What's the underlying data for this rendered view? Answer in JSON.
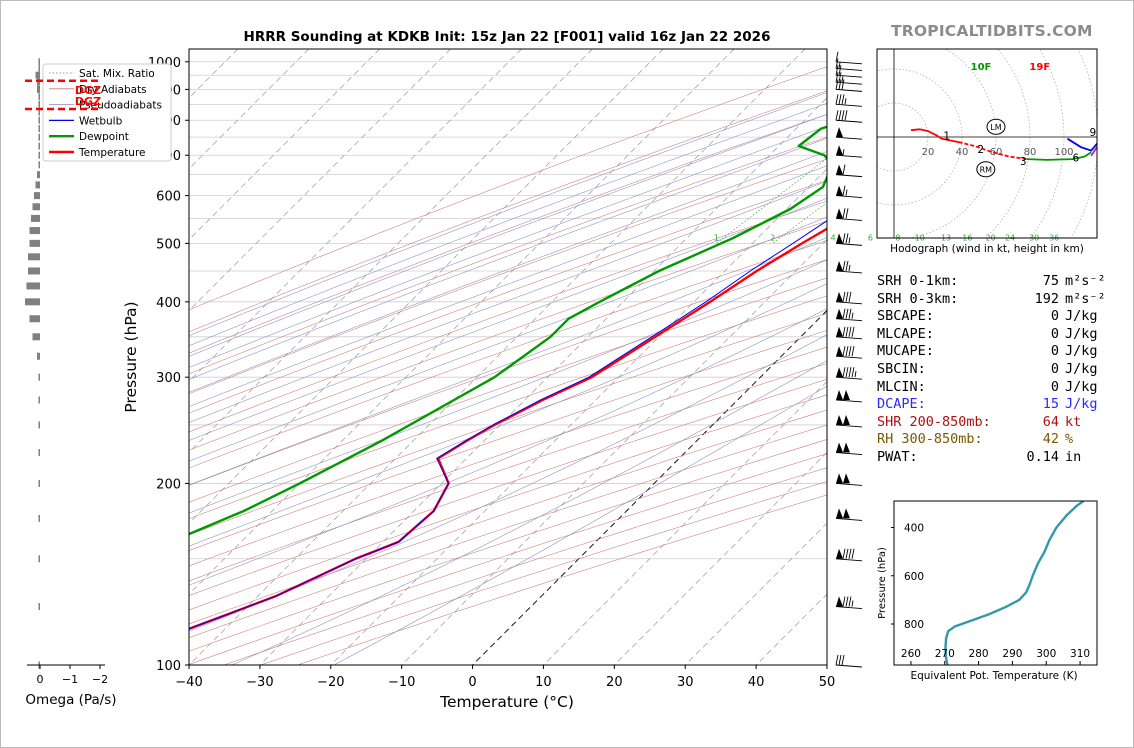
{
  "title": "HRRR Sounding at KDKB Init: 15z Jan 22 [F001] valid 16z Jan 22 2026",
  "brand": "TROPICALTIDBITS.COM",
  "colors": {
    "temperature": "#ff0000",
    "dewpoint": "#009900",
    "wetbulb": "#0000ff",
    "dry_adiabat": "#c87878",
    "moist_adiabat": "#8888cc",
    "mixing_ratio": "#33aa33",
    "dcape": "#2a2aff",
    "shr": "#b01010",
    "rh": "#7a5a00",
    "theta_e": "#3399aa",
    "dgz": "#ff0000",
    "brand": "#8c8c8c"
  },
  "chart_data": [
    {
      "type": "line",
      "id": "skewt",
      "title": "HRRR Sounding at KDKB Init: 15z Jan 22 [F001] valid 16z Jan 22 2026",
      "xlabel": "Temperature (°C)",
      "ylabel": "Pressure (hPa)",
      "xlim": [
        -40,
        50
      ],
      "ylim": [
        1050,
        100
      ],
      "y_scale": "log",
      "x_ticks": [
        "−40",
        "−30",
        "−20",
        "−10",
        "0",
        "10",
        "20",
        "30",
        "40",
        "50"
      ],
      "y_ticks": [
        "100",
        "200",
        "300",
        "400",
        "500",
        "600",
        "700",
        "800",
        "900",
        "1000"
      ],
      "legend": {
        "placement": "top-left",
        "entries": [
          "Sat. Mix. Ratio",
          "Dry Adiabats",
          "Pseudoadiabats",
          "Wetbulb",
          "Dewpoint",
          "Temperature"
        ]
      },
      "mixing_ratio_labels": [
        "1",
        "2",
        "4",
        "6",
        "8",
        "10",
        "13",
        "16",
        "20",
        "24",
        "30",
        "36"
      ],
      "series": [
        {
          "name": "Temperature",
          "x": [
            -5.5,
            -7,
            -8.5,
            -9.5,
            -10.3,
            -11.5,
            -12.2,
            -12.8,
            -10.3,
            -8.3,
            -6.3,
            -6.1,
            -7.5,
            -10.5,
            -13,
            -15.5,
            -17.7,
            -20.5,
            -23.8,
            -27.5,
            -30.8,
            -32.5,
            -34,
            -29,
            -27.2,
            -27.8,
            -31.5,
            -37.5,
            -45,
            -51.5
          ],
          "y": [
            980,
            960,
            940,
            920,
            900,
            875,
            850,
            825,
            775,
            725,
            675,
            650,
            600,
            550,
            500,
            450,
            400,
            350,
            300,
            275,
            250,
            235,
            220,
            200,
            180,
            160,
            150,
            130,
            115,
            100
          ]
        },
        {
          "name": "Wetbulb",
          "x": [
            -8,
            -9.5,
            -10.7,
            -11.3,
            -11.8,
            -12.6,
            -13.1,
            -13.6,
            -12.2,
            -11.2,
            -10.2,
            -9.3,
            -10.2,
            -12.5,
            -14.3,
            -16.4,
            -18.3,
            -21,
            -24.2,
            -27.8,
            -31,
            -32.6,
            -34.2,
            -29,
            -27.2,
            -27.8,
            -31.5,
            -37.5,
            -45,
            -51.5
          ],
          "y": [
            980,
            960,
            940,
            920,
            900,
            875,
            850,
            825,
            775,
            725,
            675,
            650,
            600,
            550,
            500,
            450,
            400,
            350,
            300,
            275,
            250,
            235,
            220,
            200,
            180,
            160,
            150,
            130,
            115,
            100
          ]
        },
        {
          "name": "Dewpoint",
          "x": [
            -14.5,
            -14.6,
            -14.8,
            -15,
            -15.8,
            -16.8,
            -18.5,
            -21.5,
            -26.5,
            -27.2,
            -22.3,
            -19.8,
            -18,
            -19.5,
            -23.5,
            -29.3,
            -33.3,
            -35.3,
            -35.3,
            -37.5,
            -40,
            -44.5,
            -50,
            -54,
            -60,
            -62.5,
            -67,
            -72,
            -78,
            -84
          ],
          "y": [
            985,
            960,
            940,
            920,
            900,
            875,
            850,
            825,
            775,
            725,
            700,
            675,
            620,
            570,
            510,
            450,
            400,
            375,
            350,
            300,
            275,
            235,
            200,
            180,
            160,
            150,
            130,
            115,
            105,
            100
          ]
        }
      ],
      "annotations": [
        "10F",
        "19F"
      ]
    },
    {
      "type": "bar",
      "id": "omega",
      "xlabel": "Omega (Pa/s)",
      "x_ticks": [
        "0",
        "−1",
        "−2"
      ],
      "annotations": [
        "DGZ",
        "DGZ"
      ],
      "dgz_pressure": [
        835,
        930
      ],
      "levels": [
        1000,
        975,
        950,
        925,
        900,
        875,
        850,
        825,
        800,
        775,
        750,
        725,
        700,
        675,
        650,
        625,
        600,
        575,
        550,
        525,
        500,
        475,
        450,
        425,
        400,
        375,
        350,
        325,
        300,
        275,
        250,
        225,
        200,
        175,
        150,
        125,
        100
      ],
      "values": [
        -0.05,
        -0.05,
        -0.15,
        -0.1,
        -0.1,
        -0.05,
        -0.05,
        -0.05,
        -0.05,
        -0.05,
        -0.05,
        -0.05,
        -0.05,
        -0.05,
        -0.1,
        -0.15,
        -0.2,
        -0.25,
        -0.3,
        -0.35,
        -0.35,
        -0.4,
        -0.4,
        -0.45,
        -0.5,
        -0.35,
        -0.25,
        -0.1,
        -0.05,
        -0.05,
        -0.05,
        -0.05,
        -0.05,
        -0.05,
        -0.05,
        -0.05,
        -0.05
      ]
    },
    {
      "type": "line",
      "id": "hodograph",
      "xlabel": "Hodograph (wind in kt, height in km)",
      "ring_labels": [
        "20",
        "40",
        "60",
        "80",
        "100"
      ],
      "height_labels": [
        "1",
        "2",
        "3",
        "6",
        "9"
      ],
      "markers": [
        "LM",
        "RM"
      ],
      "series": [
        {
          "name": "0-1 km",
          "color": "#ff0000",
          "u": [
            10,
            15,
            20,
            25,
            28,
            38
          ],
          "v": [
            4,
            4.5,
            3.5,
            1,
            -1,
            -3
          ]
        },
        {
          "name": "1-3 km",
          "color": "#ff0000",
          "u": [
            38,
            48,
            58,
            68,
            78
          ],
          "v": [
            -3,
            -5.5,
            -9,
            -11.5,
            -13
          ]
        },
        {
          "name": "3-6 km",
          "color": "#009900",
          "u": [
            78,
            90,
            105,
            112,
            116
          ],
          "v": [
            -13,
            -13.5,
            -13,
            -11.5,
            -9
          ]
        },
        {
          "name": "6-9 km",
          "color": "#0000ff",
          "u": [
            102,
            110,
            116,
            121
          ],
          "v": [
            -1,
            -6,
            -8,
            -2
          ]
        },
        {
          "name": "9+ km",
          "color": "#aa22cc",
          "u": [
            116,
            120,
            123
          ],
          "v": [
            -11,
            -5,
            0
          ]
        }
      ]
    },
    {
      "type": "line",
      "id": "theta_e",
      "xlabel": "Equivalent Pot. Temperature (K)",
      "ylabel": "Pressure (hPa)",
      "xlim": [
        255,
        315
      ],
      "ylim": [
        970,
        290
      ],
      "x_ticks": [
        "260",
        "270",
        "280",
        "290",
        "300",
        "310"
      ],
      "y_ticks": [
        "400",
        "600",
        "800"
      ],
      "series": [
        {
          "name": "Theta-E",
          "x": [
            270.8,
            270.5,
            270.3,
            270.2,
            270.4,
            271,
            273,
            277,
            283,
            288,
            292,
            294,
            295,
            296,
            297.5,
            299.5,
            301,
            303,
            306,
            309,
            311
          ],
          "y": [
            970,
            950,
            930,
            900,
            860,
            830,
            810,
            790,
            760,
            730,
            700,
            670,
            640,
            600,
            550,
            500,
            450,
            400,
            350,
            310,
            290
          ]
        }
      ]
    }
  ],
  "stats": [
    {
      "label": "SRH 0-1km:",
      "value": "75",
      "unit": "m²s⁻²",
      "color": "#000000"
    },
    {
      "label": "SRH 0-3km:",
      "value": "192",
      "unit": "m²s⁻²",
      "color": "#000000"
    },
    {
      "label": "SBCAPE:",
      "value": "0",
      "unit": "J/kg",
      "color": "#000000"
    },
    {
      "label": "MLCAPE:",
      "value": "0",
      "unit": "J/kg",
      "color": "#000000"
    },
    {
      "label": "MUCAPE:",
      "value": "0",
      "unit": "J/kg",
      "color": "#000000"
    },
    {
      "label": "SBCIN:",
      "value": "0",
      "unit": "J/kg",
      "color": "#000000"
    },
    {
      "label": "MLCIN:",
      "value": "0",
      "unit": "J/kg",
      "color": "#000000"
    },
    {
      "label": "DCAPE:",
      "value": "15",
      "unit": "J/kg",
      "color": "#2a2aff"
    },
    {
      "label": "SHR 200-850mb:",
      "value": "64",
      "unit": "kt",
      "color": "#b01010"
    },
    {
      "label": "RH 300-850mb:",
      "value": "42",
      "unit": "%",
      "color": "#7a5a00"
    },
    {
      "label": "PWAT:",
      "value": "0.14",
      "unit": "in",
      "color": "#000000"
    }
  ],
  "wind_barbs": [
    {
      "p": 1000,
      "kt": 10
    },
    {
      "p": 975,
      "kt": 15
    },
    {
      "p": 950,
      "kt": 20
    },
    {
      "p": 925,
      "kt": 25
    },
    {
      "p": 900,
      "kt": 30
    },
    {
      "p": 850,
      "kt": 35
    },
    {
      "p": 800,
      "kt": 40
    },
    {
      "p": 750,
      "kt": 50
    },
    {
      "p": 700,
      "kt": 55
    },
    {
      "p": 650,
      "kt": 60
    },
    {
      "p": 600,
      "kt": 65
    },
    {
      "p": 550,
      "kt": 70
    },
    {
      "p": 500,
      "kt": 75
    },
    {
      "p": 450,
      "kt": 75
    },
    {
      "p": 400,
      "kt": 80
    },
    {
      "p": 375,
      "kt": 85
    },
    {
      "p": 350,
      "kt": 90
    },
    {
      "p": 325,
      "kt": 90
    },
    {
      "p": 300,
      "kt": 95
    },
    {
      "p": 275,
      "kt": 100
    },
    {
      "p": 250,
      "kt": 100
    },
    {
      "p": 225,
      "kt": 100
    },
    {
      "p": 200,
      "kt": 100
    },
    {
      "p": 175,
      "kt": 100
    },
    {
      "p": 150,
      "kt": 90
    },
    {
      "p": 125,
      "kt": 85
    },
    {
      "p": 100,
      "kt": 30
    }
  ]
}
